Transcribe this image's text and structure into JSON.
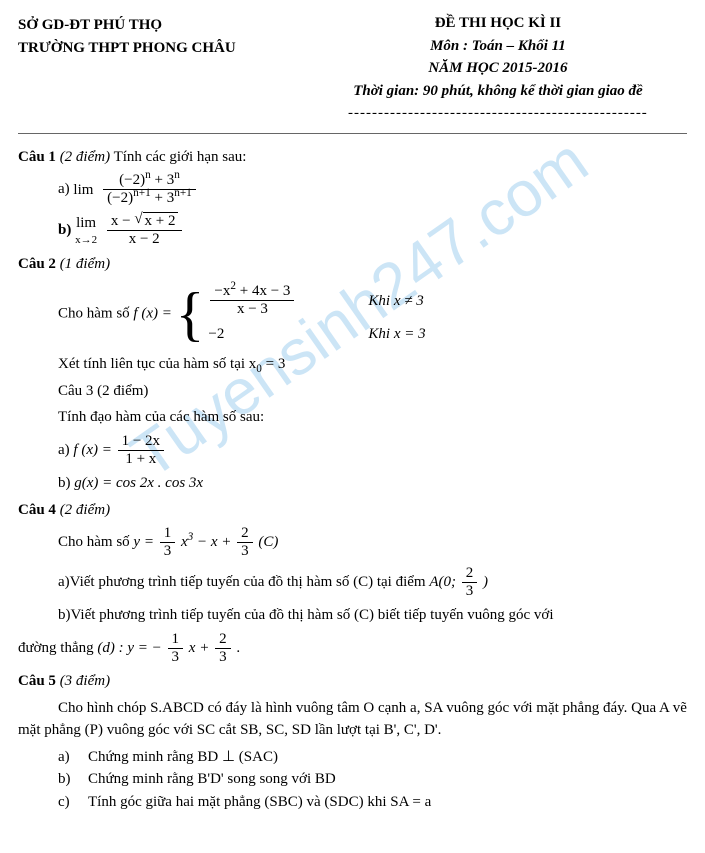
{
  "watermark": "Tuyensinh247.com",
  "header": {
    "left1": "SỞ GD-ĐT PHÚ THỌ",
    "left2": "TRƯỜNG THPT PHONG CHÂU",
    "title": "ĐỀ THI HỌC KÌ II",
    "subject": "Môn : Toán – Khối 11",
    "year": "NĂM HỌC 2015-2016",
    "time": "Thời gian: 90 phút, không kể thời gian giao đề",
    "dash": "--------------------------------------------------"
  },
  "q1": {
    "label": "Câu 1",
    "points": "(2 điểm)",
    "text": "Tính các giới hạn sau:",
    "a_label": "a)",
    "a_lim": "lim",
    "a_num": "(−2)",
    "a_num_exp": "n",
    "a_num_plus": " + 3",
    "a_num_exp2": "n",
    "a_den": "(−2)",
    "a_den_exp": "n+1",
    "a_den_plus": " + 3",
    "a_den_exp2": "n+1",
    "b_label": "b)",
    "b_lim_top": "lim",
    "b_lim_bot": "x→2",
    "b_num_left": "x − ",
    "b_num_sqrt": "x + 2",
    "b_den": "x − 2"
  },
  "q2": {
    "label": "Câu 2",
    "points": "(1 điểm)",
    "intro": "Cho hàm số ",
    "fx": "f (x) = ",
    "case1_num": "−x",
    "case1_num_sup": "2",
    "case1_num_rest": " + 4x − 3",
    "case1_den": "x − 3",
    "case1_cond": "Khi x ≠ 3",
    "case2_expr": "−2",
    "case2_cond": "Khi x = 3",
    "cont": "Xét tính liên tục của hàm số tại x",
    "cont_sub": "0",
    "cont_after": " = 3"
  },
  "q3": {
    "label": "Câu 3",
    "points": "(2 điểm)",
    "text": "Tính đạo hàm của các hàm số sau:",
    "a_label": "a)",
    "a_left": "f (x) = ",
    "a_num": "1 − 2x",
    "a_den": "1 + x",
    "b_label": "b)",
    "b_text": "g(x) = cos 2x . cos 3x"
  },
  "q4": {
    "label": "Câu 4",
    "points": "(2 điểm)",
    "intro": "Cho hàm số  ",
    "y_eq": "y = ",
    "t1_num": "1",
    "t1_den": "3",
    "t1_after": " x",
    "t1_sup": "3",
    "t2": " − x + ",
    "t3_num": "2",
    "t3_den": "3",
    "curve": "  (C)",
    "a_text_pre": "a)Viết phương trình tiếp tuyến của đồ thị hàm số (C) tại điểm   ",
    "a_point_pre": "A(0; ",
    "a_point_num": "2",
    "a_point_den": "3",
    "a_point_post": ")",
    "b_text": "b)Viết phương trình tiếp tuyến của đồ thị hàm số (C) biết tiếp tuyến vuông góc với",
    "b_line_pre": "đường thẳng ",
    "b_d": "(d) : y = ",
    "b_m_sign": "−",
    "b_m_num": "1",
    "b_m_den": "3",
    "b_m_after": " x + ",
    "b_c_num": "2",
    "b_c_den": "3",
    "b_end": "  ."
  },
  "q5": {
    "label": "Câu 5",
    "points": "(3 điểm)",
    "p1": "Cho hình chóp S.ABCD có đáy là hình vuông tâm O cạnh a, SA vuông góc với mặt phẳng đáy. Qua A vẽ mặt phẳng (P) vuông góc với SC cắt SB, SC, SD lần lượt tại B', C', D'.",
    "a_lab": "a)",
    "a": "Chứng minh rằng  BD ⊥ (SAC)",
    "b_lab": "b)",
    "b": "Chứng minh rằng B'D' song song với BD",
    "c_lab": "c)",
    "c": "Tính góc giữa hai mặt phẳng (SBC) và (SDC) khi SA = a"
  }
}
